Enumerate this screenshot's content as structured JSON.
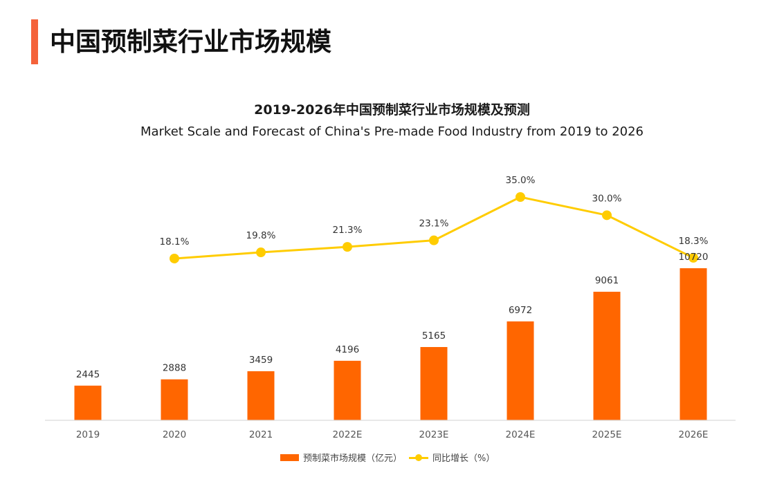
{
  "page": {
    "title": "中国预制菜行业市场规模",
    "accent_color": "#f4623a"
  },
  "chart_data": {
    "type": "bar",
    "title": "2019-2026年中国预制菜行业市场规模及预测",
    "subtitle": "Market Scale and Forecast of China's Pre-made Food Industry from 2019 to 2026",
    "categories": [
      "2019",
      "2020",
      "2021",
      "2022E",
      "2023E",
      "2024E",
      "2025E",
      "2026E"
    ],
    "series": [
      {
        "name": "预制菜市场规模（亿元）",
        "type": "bar",
        "color": "#ff6600",
        "values": [
          2445,
          2888,
          3459,
          4196,
          5165,
          6972,
          9061,
          10720
        ],
        "labels": [
          "2445",
          "2888",
          "3459",
          "4196",
          "5165",
          "6972",
          "9061",
          "10720"
        ]
      },
      {
        "name": "同比增长（%）",
        "type": "line",
        "color": "#ffcc00",
        "values": [
          null,
          18.1,
          19.8,
          21.3,
          23.1,
          35.0,
          30.0,
          18.3
        ],
        "labels": [
          "",
          "18.1%",
          "19.8%",
          "21.3%",
          "23.1%",
          "35.0%",
          "30.0%",
          "18.3%"
        ]
      }
    ],
    "xlabel": "",
    "ylabel": "",
    "ylim_bar": [
      0,
      10720
    ],
    "grid": false,
    "legend_position": "bottom"
  },
  "legend": {
    "bar_label": "预制菜市场规模（亿元）",
    "line_label": "同比增长（%）"
  }
}
